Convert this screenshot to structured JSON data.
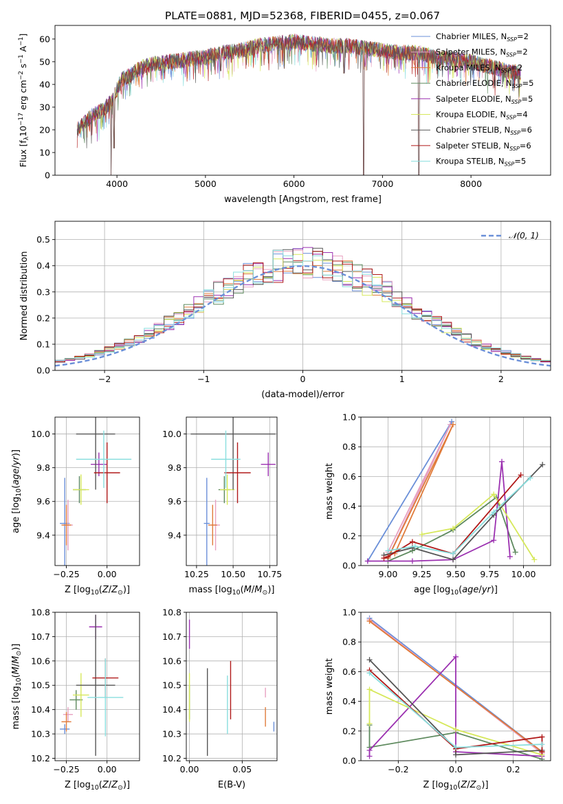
{
  "figure_title": "PLATE=0881, MJD=52368, FIBERID=0455, z=0.067",
  "models": [
    {
      "name": "Chabrier MILES",
      "n": "2",
      "color": "#6a8fd8"
    },
    {
      "name": "Salpeter MILES",
      "n": "2",
      "color": "#e8a0c0"
    },
    {
      "name": "Kroupa MILES",
      "n": "2",
      "color": "#e07b3a"
    },
    {
      "name": "Chabrier ELODIE",
      "n": "5",
      "color": "#5e8a5e"
    },
    {
      "name": "Salpeter ELODIE",
      "n": "5",
      "color": "#9b30b0"
    },
    {
      "name": "Kroupa ELODIE",
      "n": "4",
      "color": "#d6e85a"
    },
    {
      "name": "Chabrier STELIB",
      "n": "6",
      "color": "#555555"
    },
    {
      "name": "Salpeter STELIB",
      "n": "6",
      "color": "#b01818"
    },
    {
      "name": "Kroupa STELIB",
      "n": "5",
      "color": "#88dede"
    }
  ],
  "chart_data": [
    {
      "id": "spectrum",
      "type": "line",
      "xlabel": "wavelength [Angstrom, rest frame]",
      "ylabel": "Flux [fλ10⁻¹⁷ erg cm⁻² s⁻¹ A⁻¹]",
      "xlim": [
        3300,
        8900
      ],
      "ylim": [
        0,
        66
      ],
      "xticks": [
        4000,
        5000,
        6000,
        7000,
        8000
      ],
      "yticks": [
        0,
        10,
        20,
        30,
        40,
        50,
        60
      ],
      "envelope": {
        "x": [
          3550,
          3650,
          3750,
          3850,
          3950,
          4050,
          4150,
          4250,
          4400,
          4600,
          4800,
          5000,
          5200,
          5400,
          5600,
          5800,
          6000,
          6200,
          6400,
          6600,
          6800,
          7000,
          7200,
          7400,
          7600,
          7800,
          8000,
          8200,
          8400,
          8550
        ],
        "y": [
          20,
          24,
          27,
          29,
          33,
          42,
          44,
          47,
          49,
          50,
          51,
          52,
          54,
          55,
          57,
          58,
          59,
          58,
          57,
          57,
          56,
          55,
          54,
          54,
          52,
          51,
          50,
          48,
          46,
          45
        ]
      },
      "dips": [
        [
          3934,
          0
        ],
        [
          3968,
          12
        ],
        [
          6563,
          45
        ],
        [
          6785,
          0
        ],
        [
          7410,
          0
        ],
        [
          5890,
          47
        ],
        [
          5175,
          46
        ]
      ],
      "legend": "upper right"
    },
    {
      "id": "residuals",
      "type": "histogram",
      "xlabel": "(data-model)/error",
      "ylabel": "Normed distribution",
      "xlim": [
        -2.5,
        2.5
      ],
      "ylim": [
        0,
        0.57
      ],
      "xticks": [
        -2,
        -1,
        0,
        1,
        2
      ],
      "yticks": [
        0.0,
        0.1,
        0.2,
        0.3,
        0.4,
        0.5
      ],
      "bin_width": 0.1,
      "reference": {
        "name": "𝒩(0, 1)",
        "mean": 0,
        "sigma": 1
      },
      "legend": "upper right"
    },
    {
      "id": "age_vs_Z",
      "type": "errorbar",
      "xlabel": "Z [log₁₀(Z/Z⊙)]",
      "ylabel": "age  [log₁₀(age/yr)]",
      "xlim": [
        -0.32,
        0.2
      ],
      "ylim": [
        9.22,
        10.1
      ],
      "xticks": [
        -0.25,
        0.0
      ],
      "yticks": [
        9.4,
        9.6,
        9.8,
        10.0
      ],
      "points": [
        {
          "x": -0.26,
          "xerr": 0.03,
          "y": 9.47,
          "yerr": 0.27,
          "color": "#6a8fd8"
        },
        {
          "x": -0.24,
          "xerr": 0.03,
          "y": 9.46,
          "yerr": 0.15,
          "color": "#e8a0c0"
        },
        {
          "x": -0.25,
          "xerr": 0.03,
          "y": 9.46,
          "yerr": 0.12,
          "color": "#e07b3a"
        },
        {
          "x": -0.17,
          "xerr": 0.04,
          "y": 9.67,
          "yerr": 0.08,
          "color": "#5e8a5e"
        },
        {
          "x": -0.05,
          "xerr": 0.05,
          "y": 9.82,
          "yerr": 0.07,
          "color": "#9b30b0"
        },
        {
          "x": -0.16,
          "xerr": 0.05,
          "y": 9.67,
          "yerr": 0.09,
          "color": "#d6e85a"
        },
        {
          "x": -0.07,
          "xerr": 0.12,
          "y": 10.0,
          "yerr": 0.33,
          "color": "#555555"
        },
        {
          "x": 0.0,
          "xerr": 0.08,
          "y": 9.77,
          "yerr": 0.18,
          "color": "#b01818"
        },
        {
          "x": -0.02,
          "xerr": 0.17,
          "y": 9.85,
          "yerr": 0.17,
          "color": "#88dede"
        }
      ]
    },
    {
      "id": "age_vs_mass",
      "type": "errorbar",
      "xlabel": "mass [log₁₀(M/M⊙)]",
      "ylabel": "",
      "xlim": [
        10.18,
        10.8
      ],
      "ylim": [
        9.22,
        10.1
      ],
      "xticks": [
        10.25,
        10.5,
        10.75
      ],
      "yticks": [
        9.4,
        9.6,
        9.8,
        10.0
      ],
      "points": [
        {
          "x": 10.32,
          "xerr": 0.02,
          "y": 9.47,
          "yerr": 0.27,
          "color": "#6a8fd8"
        },
        {
          "x": 10.38,
          "xerr": 0.03,
          "y": 9.46,
          "yerr": 0.15,
          "color": "#e8a0c0"
        },
        {
          "x": 10.36,
          "xerr": 0.03,
          "y": 9.46,
          "yerr": 0.12,
          "color": "#e07b3a"
        },
        {
          "x": 10.44,
          "xerr": 0.04,
          "y": 9.67,
          "yerr": 0.08,
          "color": "#5e8a5e"
        },
        {
          "x": 10.74,
          "xerr": 0.05,
          "y": 9.82,
          "yerr": 0.07,
          "color": "#9b30b0"
        },
        {
          "x": 10.46,
          "xerr": 0.05,
          "y": 9.67,
          "yerr": 0.09,
          "color": "#d6e85a"
        },
        {
          "x": 10.5,
          "xerr": 0.29,
          "y": 10.0,
          "yerr": 0.33,
          "color": "#555555"
        },
        {
          "x": 10.53,
          "xerr": 0.09,
          "y": 9.77,
          "yerr": 0.18,
          "color": "#b01818"
        },
        {
          "x": 10.45,
          "xerr": 0.1,
          "y": 9.85,
          "yerr": 0.17,
          "color": "#88dede"
        }
      ]
    },
    {
      "id": "weight_vs_age",
      "type": "line",
      "xlabel": "age  [log₁₀(age/yr)]",
      "ylabel": "mass weight",
      "xlim": [
        8.8,
        10.2
      ],
      "ylim": [
        0,
        1
      ],
      "xticks": [
        9.0,
        9.25,
        9.5,
        9.75,
        10.0
      ],
      "yticks": [
        0.0,
        0.2,
        0.4,
        0.6,
        0.8,
        1.0
      ],
      "series": [
        {
          "color": "#6a8fd8",
          "x": [
            8.85,
            9.47,
            9.0
          ],
          "y": [
            0.03,
            0.97,
            0.05
          ]
        },
        {
          "color": "#e8a0c0",
          "x": [
            9.0,
            9.46,
            9.0
          ],
          "y": [
            0.05,
            0.95,
            0.09
          ]
        },
        {
          "color": "#e07b3a",
          "x": [
            9.0,
            9.48,
            9.05
          ],
          "y": [
            0.05,
            0.95,
            0.08
          ]
        },
        {
          "color": "#5e8a5e",
          "x": [
            9.0,
            9.18,
            9.48,
            9.8,
            9.94
          ],
          "y": [
            0.03,
            0.1,
            0.24,
            0.46,
            0.09
          ]
        },
        {
          "color": "#9b30b0",
          "x": [
            8.85,
            9.18,
            9.48,
            9.78,
            9.84,
            9.9
          ],
          "y": [
            0.03,
            0.03,
            0.04,
            0.17,
            0.7,
            0.06
          ]
        },
        {
          "color": "#d6e85a",
          "x": [
            9.25,
            9.48,
            9.78,
            10.08
          ],
          "y": [
            0.21,
            0.25,
            0.48,
            0.04
          ]
        },
        {
          "color": "#555555",
          "x": [
            8.97,
            9.18,
            9.48,
            9.78,
            10.14
          ],
          "y": [
            0.07,
            0.12,
            0.04,
            0.34,
            0.68
          ]
        },
        {
          "color": "#b01818",
          "x": [
            8.97,
            9.0,
            9.18,
            9.48,
            9.98
          ],
          "y": [
            0.05,
            0.06,
            0.16,
            0.08,
            0.61
          ]
        },
        {
          "color": "#88dede",
          "x": [
            9.0,
            9.2,
            9.48,
            9.78,
            10.05
          ],
          "y": [
            0.1,
            0.13,
            0.08,
            0.36,
            0.59
          ]
        }
      ]
    },
    {
      "id": "mass_vs_Z",
      "type": "errorbar",
      "xlabel": "Z [log₁₀(Z/Z⊙)]",
      "ylabel": "mass [log₁₀(M/M⊙)]",
      "xlim": [
        -0.32,
        0.2
      ],
      "ylim": [
        10.19,
        10.8
      ],
      "xticks": [
        -0.25,
        0.0
      ],
      "yticks": [
        10.2,
        10.3,
        10.4,
        10.5,
        10.6,
        10.7,
        10.8
      ],
      "points": [
        {
          "x": -0.26,
          "xerr": 0.03,
          "y": 10.32,
          "yerr": 0.02,
          "color": "#6a8fd8"
        },
        {
          "x": -0.24,
          "xerr": 0.03,
          "y": 10.38,
          "yerr": 0.03,
          "color": "#e8a0c0"
        },
        {
          "x": -0.25,
          "xerr": 0.03,
          "y": 10.35,
          "yerr": 0.04,
          "color": "#e07b3a"
        },
        {
          "x": -0.19,
          "xerr": 0.04,
          "y": 10.44,
          "yerr": 0.04,
          "color": "#5e8a5e"
        },
        {
          "x": -0.07,
          "xerr": 0.04,
          "y": 10.74,
          "yerr": 0.05,
          "color": "#9b30b0"
        },
        {
          "x": -0.16,
          "xerr": 0.05,
          "y": 10.46,
          "yerr": 0.09,
          "color": "#d6e85a"
        },
        {
          "x": -0.07,
          "xerr": 0.12,
          "y": 10.5,
          "yerr": 0.29,
          "color": "#555555"
        },
        {
          "x": -0.01,
          "xerr": 0.08,
          "y": 10.53,
          "yerr": 0.08,
          "color": "#b01818"
        },
        {
          "x": -0.01,
          "xerr": 0.11,
          "y": 10.45,
          "yerr": 0.16,
          "color": "#88dede"
        }
      ]
    },
    {
      "id": "mass_vs_EBV",
      "type": "errorbar",
      "xlabel": "E(B-V)",
      "ylabel": "",
      "xlim": [
        -0.003,
        0.083
      ],
      "ylim": [
        10.19,
        10.8
      ],
      "xticks": [
        0.0,
        0.05
      ],
      "yticks": [
        10.2,
        10.3,
        10.4,
        10.5,
        10.6,
        10.7,
        10.8
      ],
      "points": [
        {
          "x": 0.0,
          "xerr": 0.0,
          "y": 10.43,
          "yerr": 0.07,
          "color": "#5e8a5e"
        },
        {
          "x": 0.0,
          "xerr": 0.0,
          "y": 10.71,
          "yerr": 0.06,
          "color": "#9b30b0"
        },
        {
          "x": 0.0,
          "xerr": 0.0,
          "y": 10.45,
          "yerr": 0.1,
          "color": "#d6e85a"
        },
        {
          "x": 0.017,
          "xerr": 0.0,
          "y": 10.39,
          "yerr": 0.18,
          "color": "#555555"
        },
        {
          "x": 0.039,
          "xerr": 0.0,
          "y": 10.48,
          "yerr": 0.12,
          "color": "#b01818"
        },
        {
          "x": 0.036,
          "xerr": 0.0,
          "y": 10.42,
          "yerr": 0.12,
          "color": "#88dede"
        },
        {
          "x": 0.072,
          "xerr": 0.0,
          "y": 10.47,
          "yerr": 0.02,
          "color": "#e8a0c0"
        },
        {
          "x": 0.072,
          "xerr": 0.0,
          "y": 10.37,
          "yerr": 0.04,
          "color": "#e07b3a"
        },
        {
          "x": 0.08,
          "xerr": 0.0,
          "y": 10.33,
          "yerr": 0.02,
          "color": "#6a8fd8"
        }
      ]
    },
    {
      "id": "weight_vs_Z",
      "type": "line",
      "xlabel": "Z [log₁₀(Z/Z⊙)]",
      "ylabel": "mass weight",
      "xlim": [
        -0.33,
        0.33
      ],
      "ylim": [
        0,
        1
      ],
      "xticks": [
        -0.2,
        0.0,
        0.2
      ],
      "yticks": [
        0.0,
        0.2,
        0.4,
        0.6,
        0.8,
        1.0
      ],
      "series": [
        {
          "color": "#6a8fd8",
          "x": [
            -0.3,
            0.3
          ],
          "y": [
            0.96,
            0.06
          ]
        },
        {
          "color": "#e8a0c0",
          "x": [
            -0.3,
            0.3
          ],
          "y": [
            0.95,
            0.05
          ]
        },
        {
          "color": "#e07b3a",
          "x": [
            -0.3,
            0.3
          ],
          "y": [
            0.94,
            0.06
          ]
        },
        {
          "color": "#5e8a5e",
          "x": [
            -0.3,
            -0.3,
            0.0,
            0.3
          ],
          "y": [
            0.24,
            0.09,
            0.19,
            0.01
          ]
        },
        {
          "color": "#9b30b0",
          "x": [
            -0.3,
            -0.3,
            0.0,
            0.0,
            0.3
          ],
          "y": [
            0.03,
            0.07,
            0.7,
            0.06,
            0.03
          ]
        },
        {
          "color": "#d6e85a",
          "x": [
            -0.3,
            -0.3,
            0.0,
            0.3
          ],
          "y": [
            0.25,
            0.48,
            0.21,
            0.04
          ]
        },
        {
          "color": "#555555",
          "x": [
            -0.3,
            0.0,
            0.0,
            0.3
          ],
          "y": [
            0.68,
            0.08,
            0.04,
            0.07
          ]
        },
        {
          "color": "#b01818",
          "x": [
            -0.3,
            0.0,
            0.3,
            0.3
          ],
          "y": [
            0.61,
            0.08,
            0.16,
            0.06
          ]
        },
        {
          "color": "#88dede",
          "x": [
            -0.3,
            0.0,
            0.3
          ],
          "y": [
            0.59,
            0.09,
            0.11
          ]
        }
      ]
    }
  ]
}
